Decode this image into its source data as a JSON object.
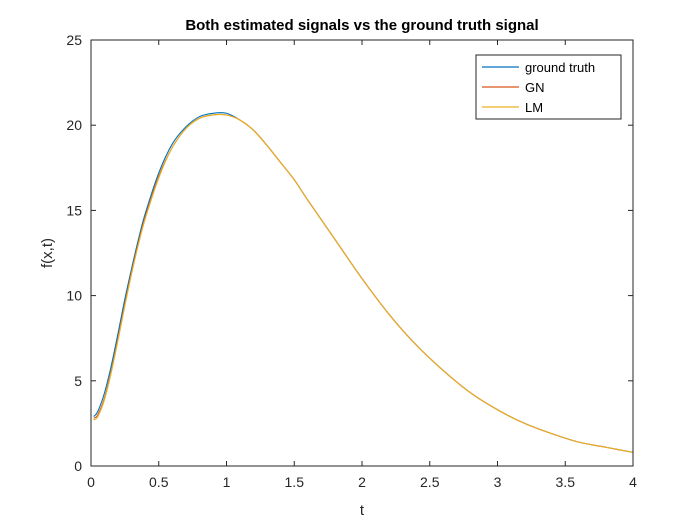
{
  "chart_data": {
    "type": "line",
    "title": "Both estimated signals vs the ground truth signal",
    "xlabel": "t",
    "ylabel": "f(x,t)",
    "xlim": [
      0,
      4
    ],
    "ylim": [
      0,
      25
    ],
    "xticks": [
      0,
      0.5,
      1,
      1.5,
      2,
      2.5,
      3,
      3.5,
      4
    ],
    "xtick_labels": [
      "0",
      "0.5",
      "1",
      "1.5",
      "2",
      "2.5",
      "3",
      "3.5",
      "4"
    ],
    "yticks": [
      0,
      5,
      10,
      15,
      20,
      25
    ],
    "ytick_labels": [
      "0",
      "5",
      "10",
      "15",
      "20",
      "25"
    ],
    "grid": false,
    "legend_position": "top-right",
    "x": [
      0.02,
      0.05,
      0.1,
      0.15,
      0.2,
      0.25,
      0.3,
      0.35,
      0.4,
      0.5,
      0.6,
      0.7,
      0.8,
      0.9,
      1.0,
      1.1,
      1.2,
      1.3,
      1.4,
      1.5,
      1.6,
      1.8,
      2.0,
      2.2,
      2.4,
      2.6,
      2.8,
      3.0,
      3.2,
      3.4,
      3.6,
      3.8,
      4.0
    ],
    "series": [
      {
        "name": "ground truth",
        "color": "#0072BD",
        "values": [
          2.9,
          3.2,
          4.3,
          5.9,
          7.8,
          9.8,
          11.6,
          13.3,
          14.8,
          17.2,
          18.9,
          19.9,
          20.5,
          20.7,
          20.7,
          20.3,
          19.7,
          18.8,
          17.8,
          16.8,
          15.6,
          13.3,
          11.0,
          8.9,
          7.1,
          5.6,
          4.3,
          3.3,
          2.5,
          1.9,
          1.4,
          1.1,
          0.8
        ]
      },
      {
        "name": "GN",
        "color": "#D95319",
        "values": [
          2.8,
          3.0,
          4.0,
          5.6,
          7.5,
          9.5,
          11.4,
          13.1,
          14.6,
          17.0,
          18.7,
          19.8,
          20.4,
          20.6,
          20.6,
          20.3,
          19.7,
          18.8,
          17.8,
          16.8,
          15.6,
          13.3,
          11.0,
          8.9,
          7.1,
          5.6,
          4.3,
          3.3,
          2.5,
          1.9,
          1.4,
          1.1,
          0.8
        ]
      },
      {
        "name": "LM",
        "color": "#EDB120",
        "values": [
          2.7,
          2.9,
          3.9,
          5.5,
          7.4,
          9.4,
          11.3,
          13.0,
          14.5,
          16.9,
          18.7,
          19.8,
          20.4,
          20.6,
          20.6,
          20.3,
          19.7,
          18.8,
          17.8,
          16.8,
          15.6,
          13.3,
          11.0,
          8.9,
          7.1,
          5.6,
          4.3,
          3.3,
          2.5,
          1.9,
          1.4,
          1.1,
          0.8
        ]
      }
    ]
  }
}
